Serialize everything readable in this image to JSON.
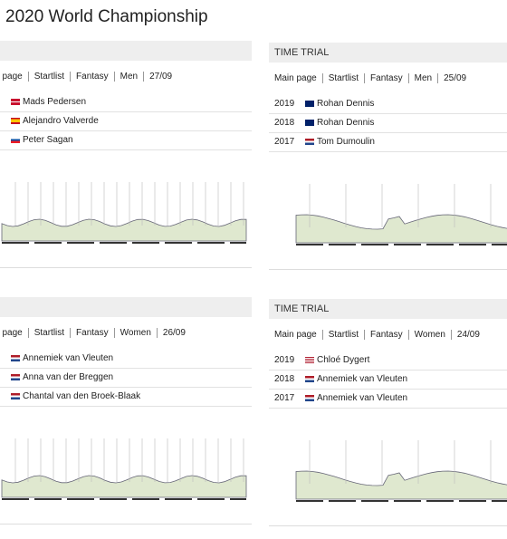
{
  "title": "2020 World Championship",
  "panels": [
    {
      "header": "",
      "links": [
        "Main page",
        "Startlist",
        "Fantasy",
        "Men",
        "27/09"
      ],
      "results": [
        {
          "flag": "dk",
          "name": "Mads Pedersen"
        },
        {
          "flag": "es",
          "name": "Alejandro Valverde"
        },
        {
          "flag": "sk",
          "name": "Peter Sagan"
        }
      ]
    },
    {
      "header": "TIME TRIAL",
      "links": [
        "Main page",
        "Startlist",
        "Fantasy",
        "Men",
        "25/09"
      ],
      "results": [
        {
          "year": "2019",
          "flag": "au",
          "name": "Rohan Dennis"
        },
        {
          "year": "2018",
          "flag": "au",
          "name": "Rohan Dennis"
        },
        {
          "year": "2017",
          "flag": "nl",
          "name": "Tom Dumoulin"
        }
      ]
    },
    {
      "header": "",
      "links": [
        "Main page",
        "Startlist",
        "Fantasy",
        "Women",
        "26/09"
      ],
      "results": [
        {
          "flag": "nl",
          "name": "Annemiek van Vleuten"
        },
        {
          "flag": "nl",
          "name": "Anna van der Breggen"
        },
        {
          "flag": "nl",
          "name": "Chantal van den Broek-Blaak"
        }
      ]
    },
    {
      "header": "TIME TRIAL",
      "links": [
        "Main page",
        "Startlist",
        "Fantasy",
        "Women",
        "24/09"
      ],
      "results": [
        {
          "year": "2019",
          "flag": "us",
          "name": "Chloé Dygert"
        },
        {
          "year": "2018",
          "flag": "nl",
          "name": "Annemiek van Vleuten"
        },
        {
          "year": "2017",
          "flag": "nl",
          "name": "Annemiek van Vleuten"
        }
      ]
    }
  ]
}
